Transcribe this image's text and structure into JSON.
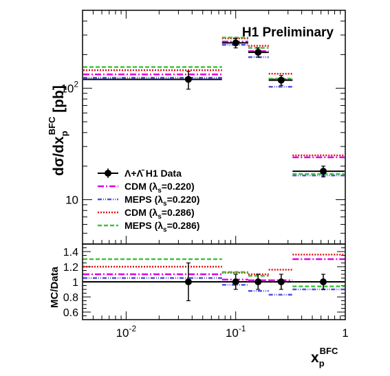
{
  "chart_data": {
    "type": "scatter",
    "annotation": "H1 Preliminary",
    "upper": {
      "ylabel_main": "dσ/dx",
      "ylabel_sub": "p",
      "ylabel_sup": "BFC",
      "ylabel_unit": " [pb]",
      "yscale": "log",
      "ylim": [
        4,
        500
      ],
      "y_ticks": [
        {
          "v": 10,
          "t": "10"
        },
        {
          "v": 100,
          "t": "10"
        }
      ],
      "y_tick_sup": [
        "",
        "2"
      ]
    },
    "lower": {
      "ylabel": "MC/Data",
      "ylim": [
        0.5,
        1.5
      ],
      "y_ticks": [
        {
          "v": 0.6,
          "t": "0.6"
        },
        {
          "v": 0.8,
          "t": "0.8"
        },
        {
          "v": 1.0,
          "t": "1"
        },
        {
          "v": 1.2,
          "t": "1.2"
        },
        {
          "v": 1.4,
          "t": "1.4"
        }
      ]
    },
    "x": {
      "xlabel_main": "x",
      "xlabel_sub": "p",
      "xlabel_sup": "BFC",
      "xscale": "log",
      "xlim": [
        0.004,
        1.0
      ],
      "x_ticks": [
        {
          "v": 0.01,
          "t": "10",
          "sup": "-2"
        },
        {
          "v": 0.1,
          "t": "10",
          "sup": "-1"
        },
        {
          "v": 1,
          "t": "1",
          "sup": ""
        }
      ]
    },
    "bins": [
      [
        0.004,
        0.075
      ],
      [
        0.075,
        0.13
      ],
      [
        0.13,
        0.2
      ],
      [
        0.2,
        0.33
      ],
      [
        0.33,
        1.0
      ]
    ],
    "data": {
      "name": "Λ+Λ̄ H1 Data",
      "x": [
        0.037,
        0.1,
        0.16,
        0.26,
        0.63
      ],
      "y": [
        120,
        255,
        210,
        118,
        18
      ],
      "yerr": [
        22,
        25,
        20,
        12,
        2
      ],
      "ratio": [
        1.0,
        1.0,
        1.0,
        1.0,
        1.0
      ],
      "ratio_err": [
        0.25,
        0.1,
        0.1,
        0.1,
        0.1
      ]
    },
    "series": [
      {
        "name_main": "CDM (λ",
        "name_sub": "s",
        "name_end": "=0.220)",
        "color": "#e000e0",
        "dash": "9,3,2,3",
        "values": [
          133,
          262,
          215,
          120,
          24
        ],
        "ratio": [
          1.1,
          1.03,
          1.02,
          1.02,
          1.3
        ]
      },
      {
        "name_main": "MEPS (λ",
        "name_sub": "s",
        "name_end": "=0.220)",
        "color": "#5050e0",
        "dash": "6,2,1,2,1,2",
        "values": [
          124,
          245,
          190,
          103,
          16.5
        ],
        "ratio": [
          1.05,
          0.96,
          0.88,
          0.83,
          0.9
        ]
      },
      {
        "name_main": "CDM (λ",
        "name_sub": "s",
        "name_end": "=0.286)",
        "color": "#e01010",
        "dash": "2,2",
        "values": [
          145,
          280,
          240,
          135,
          25
        ],
        "ratio": [
          1.2,
          1.12,
          1.1,
          1.16,
          1.36
        ]
      },
      {
        "name_main": "MEPS (λ",
        "name_sub": "s",
        "name_end": "=0.286)",
        "color": "#40c040",
        "dash": "6,3",
        "values": [
          155,
          285,
          230,
          122,
          17
        ],
        "ratio": [
          1.3,
          1.13,
          1.08,
          1.0,
          0.94
        ]
      }
    ],
    "legend_position": "lower-left"
  }
}
